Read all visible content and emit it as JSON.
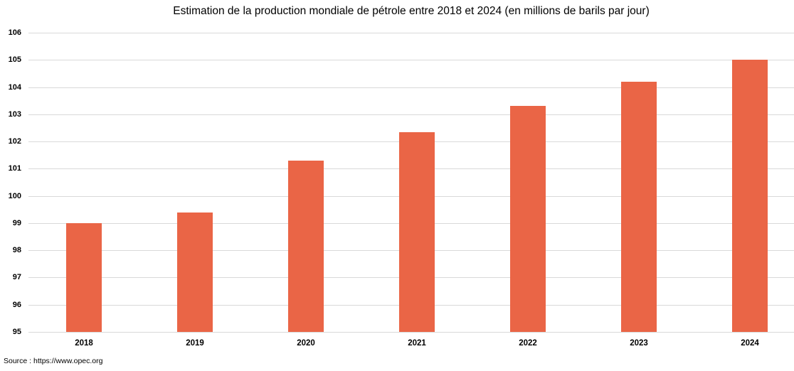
{
  "title": "Estimation de la production mondiale de pétrole entre 2018 et 2024 (en millions de barils par jour)",
  "source": "Source : https://www.opec.org",
  "colors": {
    "bar": "#EA6546",
    "gridline": "#D9D9D9",
    "text": "#000000",
    "background": "#FFFFFF"
  },
  "chart_data": {
    "type": "bar",
    "title": "Estimation de la production mondiale de pétrole entre 2018 et 2024 (en millions de barils par jour)",
    "categories": [
      "2018",
      "2019",
      "2020",
      "2021",
      "2022",
      "2023",
      "2024"
    ],
    "values": [
      99.0,
      99.4,
      101.3,
      102.35,
      103.3,
      104.2,
      105.0
    ],
    "xlabel": "",
    "ylabel": "",
    "ylim": [
      95,
      106
    ],
    "ytick_step": 1,
    "yticks": [
      95,
      96,
      97,
      98,
      99,
      100,
      101,
      102,
      103,
      104,
      105,
      106
    ],
    "grid": true,
    "legend": false,
    "annotation": "Source : https://www.opec.org"
  }
}
